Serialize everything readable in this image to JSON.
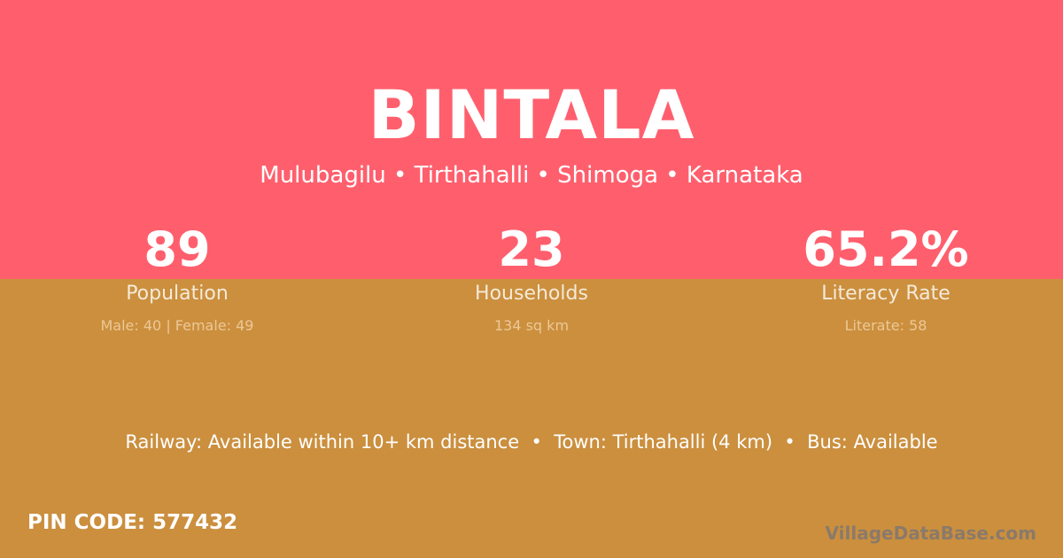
{
  "title": "BINTALA",
  "location": "Mulubagilu • Tirthahalli • Shimoga • Karnataka",
  "stats": [
    {
      "value": "89",
      "label": "Population",
      "detail": "Male: 40 | Female: 49"
    },
    {
      "value": "23",
      "label": "Households",
      "detail": "134 sq km"
    },
    {
      "value": "65.2%",
      "label": "Literacy Rate",
      "detail": "Literate: 58"
    }
  ],
  "info": "Railway: Available within 10+ km distance  •  Town: Tirthahalli (4 km)  •  Bus: Available",
  "pin": "PIN CODE: 577432",
  "watermark": "VillageDataBase.com",
  "colors": {
    "top": "#ff5f6d",
    "bottom": "#cb8f3e"
  }
}
